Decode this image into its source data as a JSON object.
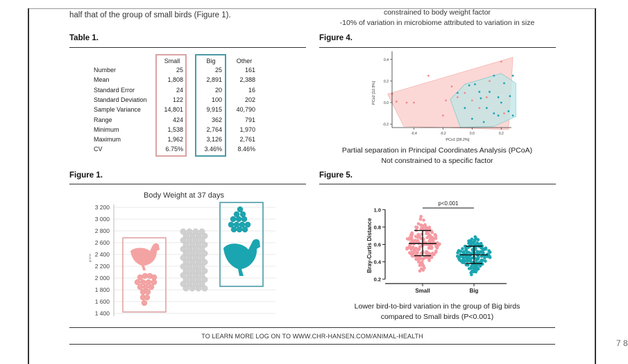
{
  "intro_text": "half that of the group of small birds (Figure 1).",
  "figure4_top_lines": [
    "constrained to body weight factor",
    "-10% of variation in microbiome attributed to variation in size"
  ],
  "table1": {
    "title": "Table 1.",
    "columns": [
      "Small",
      "Big",
      "Other"
    ],
    "rows": [
      {
        "label": "Number",
        "values": [
          "25",
          "25",
          "161"
        ]
      },
      {
        "label": "Mean",
        "values": [
          "1,808",
          "2,891",
          "2,388"
        ]
      },
      {
        "label": "Standard Error",
        "values": [
          "24",
          "20",
          "16"
        ]
      },
      {
        "label": "Standard Deviation",
        "values": [
          "122",
          "100",
          "202"
        ]
      },
      {
        "label": "Sample Variance",
        "values": [
          "14,801",
          "9,915",
          "40,790"
        ]
      },
      {
        "label": "Range",
        "values": [
          "424",
          "362",
          "791"
        ]
      },
      {
        "label": "Minimum",
        "values": [
          "1,538",
          "2,764",
          "1,970"
        ]
      },
      {
        "label": "Maximum",
        "values": [
          "1,962",
          "3,126",
          "2,761"
        ]
      },
      {
        "label": "CV",
        "values": [
          "6.75%",
          "3.46%",
          "8.46%"
        ]
      }
    ]
  },
  "figure1": {
    "title": "Figure 1.",
    "chart_title": "Body Weight at 37 days",
    "ylabel": "grams",
    "yticks": [
      "3 200",
      "3 000",
      "2 800",
      "2 600",
      "2 400",
      "2 200",
      "2 000",
      "1 800",
      "1 600",
      "1 400"
    ]
  },
  "figure4": {
    "title": "Figure 4.",
    "ylabel": "PCo2 [12.9%]",
    "xlabel": "PCo1 [28.2%]",
    "yticks": [
      "0.4",
      "0.2",
      "0.0",
      "-0.2"
    ],
    "xticks": [
      "-0.4",
      "-0.2",
      "0.0",
      "0.2"
    ],
    "caption_lines": [
      "Partial separation in Principal Coordinates Analysis (PCoA)",
      "Not constrained to a specific factor"
    ]
  },
  "figure5": {
    "title": "Figure 5.",
    "ylabel": "Bray-Curtis Distance",
    "yticks": [
      "1.0",
      "0.8",
      "0.6",
      "0.4",
      "0.2"
    ],
    "categories": [
      "Small",
      "Big"
    ],
    "significance": "p<0.001",
    "caption_lines": [
      "Lower bird-to-bird variation in the group of Big birds",
      "compared to Small birds (P<0.001)"
    ]
  },
  "footer": "TO LEARN MORE LOG ON TO WWW.CHR-HANSEN.COM/ANIMAL-HEALTH",
  "edge_marks": "7 8",
  "colors": {
    "small": "#f28b8b",
    "big": "#1aa5b0",
    "other": "#bfbfbf",
    "small_fill": "#f9c8c4",
    "big_fill": "#bfe5e6"
  }
}
